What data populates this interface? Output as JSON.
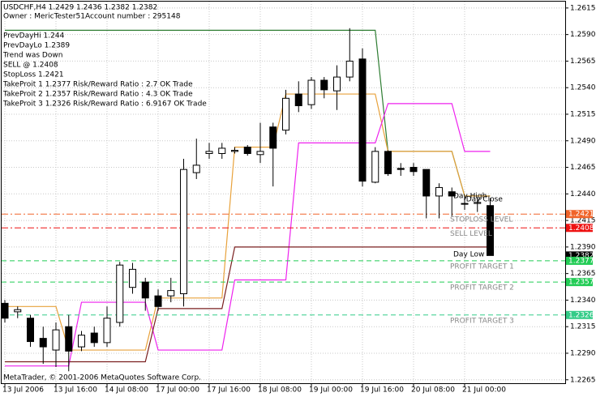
{
  "chart_data": {
    "type": "candlestick",
    "title": "USDCHF,H4  1.2429 1.2436 1.2382 1.2382",
    "subtitle": "Owner : MericTester51Account number : 295148",
    "info": [
      "PrevDayHi 1.244",
      "PrevDayLo 1.2389",
      "Trend was Down",
      "SELL @ 1.2408",
      "StopLoss 1.2421",
      "TakeProit 1 1.2377 Risk/Reward Ratio : 2.7 OK Trade",
      "TakeProit 2 1.2357 Risk/Reward Ratio : 4.3 OK Trade",
      "TakeProit 3 1.2326 Risk/Reward Ratio : 6.9167 OK Trade"
    ],
    "footer": "MetaTrader, © 2001-2006 MetaQuotes Software Corp.",
    "categories": [
      "13 Jul 2006",
      null,
      null,
      null,
      "13 Jul 16:00",
      null,
      null,
      null,
      "14 Jul 08:00",
      null,
      null,
      null,
      "17 Jul 00:00",
      null,
      null,
      null,
      "17 Jul 16:00",
      null,
      null,
      null,
      "18 Jul 08:00",
      null,
      null,
      null,
      "19 Jul 00:00",
      null,
      null,
      null,
      "19 Jul 16:00",
      null,
      null,
      null,
      "20 Jul 08:00",
      null,
      null,
      null,
      "21 Jul 00:00",
      null,
      null
    ],
    "open": [
      1.2337,
      1.2329,
      1.2323,
      1.2304,
      1.2293,
      1.2315,
      1.2296,
      1.2309,
      1.23,
      1.2319,
      1.2352,
      1.2357,
      1.2344,
      1.2344,
      1.2346,
      1.246,
      1.2478,
      1.2478,
      1.248,
      1.2484,
      1.2477,
      1.2503,
      1.25,
      1.2534,
      1.2524,
      1.2547,
      1.2537,
      1.255,
      1.2567,
      1.2451,
      1.248,
      1.2464,
      1.2465,
      1.2463,
      1.2438,
      1.2442,
      1.2431,
      1.2431,
      1.2429
    ],
    "high": [
      1.234,
      1.2334,
      1.2326,
      1.2315,
      1.2319,
      1.2326,
      1.2311,
      1.2315,
      1.2334,
      1.2376,
      1.2375,
      1.2361,
      1.235,
      1.2361,
      1.2473,
      1.2492,
      1.2488,
      1.2488,
      1.2484,
      1.2486,
      1.2507,
      1.2507,
      1.2538,
      1.2546,
      1.255,
      1.255,
      1.2561,
      1.2596,
      1.2577,
      1.2484,
      1.2481,
      1.2469,
      1.2469,
      1.2463,
      1.245,
      1.2446,
      1.2438,
      1.2437,
      1.2436
    ],
    "low": [
      1.2319,
      1.2323,
      1.2296,
      1.228,
      1.2277,
      1.2273,
      1.2292,
      1.2296,
      1.2296,
      1.2315,
      1.2346,
      1.233,
      1.233,
      1.2338,
      1.2334,
      1.2454,
      1.2473,
      1.2473,
      1.2478,
      1.2476,
      1.2469,
      1.2447,
      1.2496,
      1.2517,
      1.252,
      1.253,
      1.2519,
      1.2546,
      1.2447,
      1.245,
      1.2457,
      1.2457,
      1.2457,
      1.2417,
      1.2417,
      1.2419,
      1.2425,
      1.2423,
      1.2382
    ],
    "close": [
      1.2323,
      1.2331,
      1.2301,
      1.2296,
      1.2312,
      1.2292,
      1.2307,
      1.23,
      1.2323,
      1.2373,
      1.2369,
      1.2342,
      1.2334,
      1.2349,
      1.2463,
      1.2467,
      1.248,
      1.2483,
      1.2481,
      1.2478,
      1.248,
      1.2483,
      1.253,
      1.2523,
      1.2547,
      1.2538,
      1.255,
      1.2565,
      1.2452,
      1.248,
      1.2459,
      1.2463,
      1.2461,
      1.2438,
      1.2446,
      1.2438,
      1.2431,
      1.2432,
      1.2382
    ],
    "lines": [
      {
        "color": "#2e7d32",
        "values": [
          1.2594,
          1.2594,
          1.2594,
          1.2594,
          1.2594,
          1.2594,
          1.2594,
          1.2594,
          1.2594,
          1.2594,
          1.2594,
          1.2594,
          1.2594,
          1.2594,
          1.2594,
          1.2594,
          1.2594,
          1.2594,
          1.2594,
          1.2594,
          1.2594,
          1.2594,
          1.2594,
          1.2594,
          1.2594,
          1.2594,
          1.2594,
          1.2594,
          1.2594,
          1.2594,
          1.248,
          1.248,
          1.248,
          1.248,
          1.248,
          1.248,
          1.2438,
          1.2438,
          1.2438
        ]
      },
      {
        "color": "#e8a23c",
        "values": [
          1.2334,
          1.2334,
          1.2334,
          1.2334,
          1.2334,
          1.2293,
          1.2293,
          1.2293,
          1.2293,
          1.2293,
          1.2293,
          1.2293,
          1.2342,
          1.2342,
          1.2342,
          1.2342,
          1.2342,
          1.2342,
          1.2484,
          1.2484,
          1.2484,
          1.2484,
          1.2534,
          1.2534,
          1.2534,
          1.2534,
          1.2534,
          1.2534,
          1.2534,
          1.2534,
          1.248,
          1.248,
          1.248,
          1.248,
          1.248,
          1.248,
          1.2438,
          1.2438,
          1.2438
        ]
      },
      {
        "color": "#ee22ee",
        "values": [
          1.2278,
          1.2278,
          1.2278,
          1.2278,
          1.2278,
          1.2278,
          1.2338,
          1.2338,
          1.2338,
          1.2338,
          1.2338,
          1.2338,
          1.2293,
          1.2293,
          1.2293,
          1.2293,
          1.2293,
          1.2293,
          1.2359,
          1.2359,
          1.2359,
          1.2359,
          1.2359,
          1.2488,
          1.2488,
          1.2488,
          1.2488,
          1.2488,
          1.2488,
          1.2488,
          1.2525,
          1.2525,
          1.2525,
          1.2525,
          1.2525,
          1.2525,
          1.248,
          1.248,
          1.248
        ]
      },
      {
        "color": "#7a1f1f",
        "values": [
          1.2282,
          1.2282,
          1.2282,
          1.2282,
          1.2282,
          1.2282,
          1.2282,
          1.2282,
          1.2282,
          1.2282,
          1.2282,
          1.2282,
          1.2332,
          1.2332,
          1.2332,
          1.2332,
          1.2332,
          1.2332,
          1.239,
          1.239,
          1.239,
          1.239,
          1.239,
          1.239,
          1.239,
          1.239,
          1.239,
          1.239,
          1.239,
          1.239,
          1.239,
          1.239,
          1.239,
          1.239,
          1.239,
          1.239,
          1.239,
          1.239,
          1.239
        ]
      }
    ],
    "levels": [
      {
        "value": 1.2421,
        "text": "STOPLOSS LEVEL",
        "color": "#f0642a",
        "dash": "8 3 2 3"
      },
      {
        "value": 1.2408,
        "text": "SELL LEVEL",
        "color": "#ee1111",
        "dash": "8 3 2 3"
      },
      {
        "value": 1.2382,
        "color": "#000000"
      },
      {
        "value": 1.2377,
        "text": "PROFIT TARGET 1",
        "color": "#22cc55",
        "dash": "6 4"
      },
      {
        "value": 1.2357,
        "text": "PROFIT TARGET 2",
        "color": "#22cc55",
        "dash": "6 4"
      },
      {
        "value": 1.2326,
        "text": "PROFIT TARGET 3",
        "color": "#33cc88",
        "dash": "6 4"
      }
    ],
    "annotations": [
      {
        "text": "Day High",
        "x": 36,
        "y": 1.2438
      },
      {
        "text": "Day Close",
        "x": 37,
        "y": 1.2435
      },
      {
        "text": "Day Low",
        "x": 36,
        "y": 1.2383
      }
    ],
    "ylim": [
      1.2261,
      1.2621
    ],
    "yticks": [
      1.2615,
      {
        "value": 1.259,
        "label": "1.2590"
      },
      1.2565,
      {
        "value": 1.254,
        "label": "1.2540"
      },
      1.2515,
      {
        "value": 1.249,
        "label": "1.2490"
      },
      1.2465,
      {
        "value": 1.244,
        "label": "1.2440"
      },
      1.2415,
      {
        "value": 1.239,
        "label": "1.2390"
      },
      1.2365,
      {
        "value": 1.234,
        "label": "1.2340"
      },
      1.2315,
      {
        "value": 1.229,
        "label": "1.2290"
      },
      1.2265
    ],
    "grid": true
  }
}
